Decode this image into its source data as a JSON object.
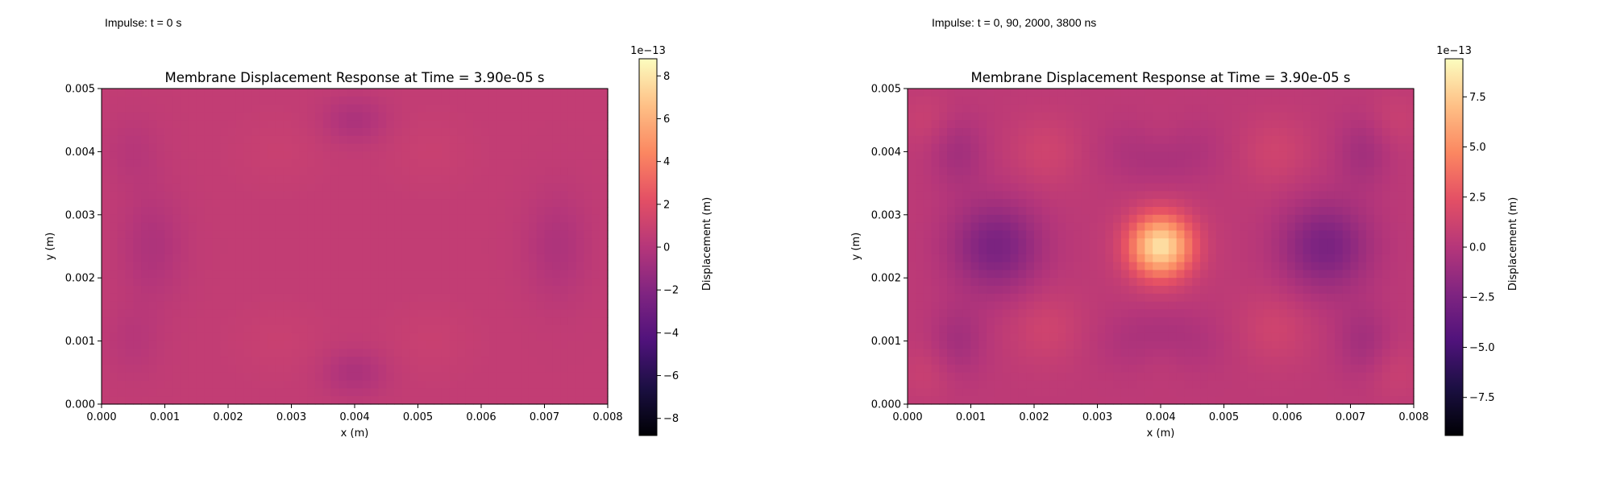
{
  "panels": [
    {
      "caption": "Impulse: t = 0 s"
    },
    {
      "caption": "Impulse: t = 0, 90, 2000, 3800 ns"
    }
  ],
  "chart_data": [
    {
      "type": "heatmap",
      "title": "Membrane Displacement Response at Time = 3.90e-05 s",
      "xlabel": "x (m)",
      "ylabel": "y (m)",
      "xlim": [
        0.0,
        0.008
      ],
      "ylim": [
        0.0,
        0.005
      ],
      "xticks": [
        "0.000",
        "0.001",
        "0.002",
        "0.003",
        "0.004",
        "0.005",
        "0.006",
        "0.007",
        "0.008"
      ],
      "yticks": [
        "0.000",
        "0.001",
        "0.002",
        "0.003",
        "0.004",
        "0.005"
      ],
      "colorbar": {
        "label": "Displacement (m)",
        "scale_label": "1e−13",
        "range": [
          -8.8,
          8.8
        ],
        "ticks": [
          -8,
          -6,
          -4,
          -2,
          0,
          2,
          4,
          6,
          8
        ],
        "tick_labels": [
          "−8",
          "−6",
          "−4",
          "−2",
          "0",
          "2",
          "4",
          "6",
          "8"
        ],
        "colormap": "magma"
      },
      "field": {
        "base": 0.6,
        "features": [
          {
            "x": 0.0008,
            "y": 0.0025,
            "amp": -0.9,
            "sx": 0.00035,
            "sy": 0.0006
          },
          {
            "x": 0.0072,
            "y": 0.0025,
            "amp": -0.9,
            "sx": 0.00035,
            "sy": 0.0006
          },
          {
            "x": 0.004,
            "y": 0.0045,
            "amp": -1.0,
            "sx": 0.00035,
            "sy": 0.00025
          },
          {
            "x": 0.004,
            "y": 0.0005,
            "amp": -1.0,
            "sx": 0.00035,
            "sy": 0.00025
          },
          {
            "x": 0.0005,
            "y": 0.004,
            "amp": -0.5,
            "sx": 0.0003,
            "sy": 0.0004
          },
          {
            "x": 0.0005,
            "y": 0.001,
            "amp": -0.5,
            "sx": 0.0003,
            "sy": 0.0004
          },
          {
            "x": 0.0028,
            "y": 0.004,
            "amp": 0.3,
            "sx": 0.0005,
            "sy": 0.0004
          },
          {
            "x": 0.0052,
            "y": 0.004,
            "amp": 0.3,
            "sx": 0.0005,
            "sy": 0.0004
          },
          {
            "x": 0.0028,
            "y": 0.001,
            "amp": 0.3,
            "sx": 0.0005,
            "sy": 0.0004
          },
          {
            "x": 0.0052,
            "y": 0.001,
            "amp": 0.3,
            "sx": 0.0005,
            "sy": 0.0004
          }
        ]
      }
    },
    {
      "type": "heatmap",
      "title": "Membrane Displacement Response at Time = 3.90e-05 s",
      "xlabel": "x (m)",
      "ylabel": "y (m)",
      "xlim": [
        0.0,
        0.008
      ],
      "ylim": [
        0.0,
        0.005
      ],
      "xticks": [
        "0.000",
        "0.001",
        "0.002",
        "0.003",
        "0.004",
        "0.005",
        "0.006",
        "0.007",
        "0.008"
      ],
      "yticks": [
        "0.000",
        "0.001",
        "0.002",
        "0.003",
        "0.004",
        "0.005"
      ],
      "colorbar": {
        "label": "Displacement (m)",
        "scale_label": "1e−13",
        "range": [
          -9.4,
          9.4
        ],
        "ticks": [
          -7.5,
          -5.0,
          -2.5,
          0.0,
          2.5,
          5.0,
          7.5
        ],
        "tick_labels": [
          "−7.5",
          "−5.0",
          "−2.5",
          "0.0",
          "2.5",
          "5.0",
          "7.5"
        ],
        "colormap": "magma"
      },
      "field": {
        "base": 0.4,
        "features": [
          {
            "x": 0.004,
            "y": 0.0025,
            "amp": 8.0,
            "sx": 0.00035,
            "sy": 0.00035
          },
          {
            "x": 0.0014,
            "y": 0.0025,
            "amp": -3.0,
            "sx": 0.0005,
            "sy": 0.0005
          },
          {
            "x": 0.0066,
            "y": 0.0025,
            "amp": -3.0,
            "sx": 0.0005,
            "sy": 0.0005
          },
          {
            "x": 0.004,
            "y": 0.004,
            "amp": -1.2,
            "sx": 0.0006,
            "sy": 0.00035
          },
          {
            "x": 0.004,
            "y": 0.001,
            "amp": -1.2,
            "sx": 0.0006,
            "sy": 0.00035
          },
          {
            "x": 0.0022,
            "y": 0.0012,
            "amp": 0.9,
            "sx": 0.0004,
            "sy": 0.0004
          },
          {
            "x": 0.0058,
            "y": 0.0012,
            "amp": 0.9,
            "sx": 0.0004,
            "sy": 0.0004
          },
          {
            "x": 0.0022,
            "y": 0.004,
            "amp": 0.9,
            "sx": 0.0004,
            "sy": 0.0004
          },
          {
            "x": 0.0058,
            "y": 0.004,
            "amp": 0.9,
            "sx": 0.0004,
            "sy": 0.0004
          },
          {
            "x": 0.004,
            "y": 0.0042,
            "amp": 0.6,
            "sx": 0.0003,
            "sy": 0.0003
          },
          {
            "x": 0.004,
            "y": 0.0008,
            "amp": 0.6,
            "sx": 0.0003,
            "sy": 0.0003
          },
          {
            "x": 0.0003,
            "y": 0.0045,
            "amp": 0.6,
            "sx": 0.0003,
            "sy": 0.0003
          },
          {
            "x": 0.0003,
            "y": 0.0005,
            "amp": 0.6,
            "sx": 0.0003,
            "sy": 0.0003
          },
          {
            "x": 0.0077,
            "y": 0.0045,
            "amp": 0.6,
            "sx": 0.0003,
            "sy": 0.0003
          },
          {
            "x": 0.0077,
            "y": 0.0005,
            "amp": 0.6,
            "sx": 0.0003,
            "sy": 0.0003
          },
          {
            "x": 0.0072,
            "y": 0.004,
            "amp": -1.2,
            "sx": 0.0003,
            "sy": 0.0004
          },
          {
            "x": 0.0008,
            "y": 0.004,
            "amp": -1.2,
            "sx": 0.0003,
            "sy": 0.0004
          },
          {
            "x": 0.0072,
            "y": 0.001,
            "amp": -1.2,
            "sx": 0.0003,
            "sy": 0.0004
          },
          {
            "x": 0.0008,
            "y": 0.001,
            "amp": -1.2,
            "sx": 0.0003,
            "sy": 0.0004
          }
        ]
      }
    }
  ]
}
